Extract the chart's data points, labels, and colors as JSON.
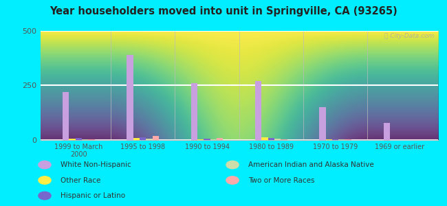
{
  "title": "Year householders moved into unit in Springville, CA (93265)",
  "categories": [
    "1999 to March\n2000",
    "1995 to 1998",
    "1990 to 1994",
    "1980 to 1989",
    "1970 to 1979",
    "1969 or earlier"
  ],
  "series": {
    "White Non-Hispanic": [
      220,
      390,
      260,
      270,
      150,
      80
    ],
    "Other Race": [
      5,
      8,
      3,
      12,
      3,
      0
    ],
    "Hispanic or Latino": [
      8,
      12,
      5,
      10,
      3,
      0
    ],
    "American Indian and Alaska Native": [
      3,
      5,
      3,
      5,
      3,
      0
    ],
    "Two or More Races": [
      3,
      18,
      8,
      3,
      3,
      0
    ]
  },
  "colors": {
    "White Non-Hispanic": "#c8a0e0",
    "Other Race": "#ffee44",
    "Hispanic or Latino": "#7766cc",
    "American Indian and Alaska Native": "#ccddaa",
    "Two or More Races": "#ffaaaa"
  },
  "ylim": [
    0,
    500
  ],
  "yticks": [
    0,
    250,
    500
  ],
  "background_color": "#00eeff",
  "watermark": "ⓘ City-Data.com"
}
